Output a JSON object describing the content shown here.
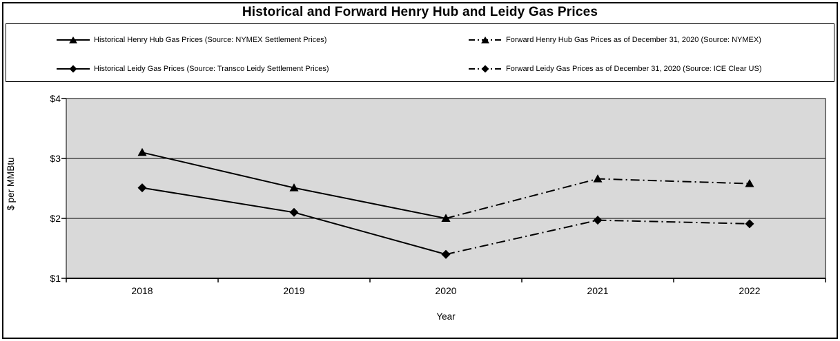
{
  "title": "Historical and Forward Henry Hub and Leidy Gas Prices",
  "axis": {
    "y_label": "$ per MMBtu",
    "x_label": "Year"
  },
  "legend": {
    "items": [
      {
        "label": "Historical Henry Hub Gas Prices (Source: NYMEX Settlement Prices)",
        "marker": "triangle",
        "line": "solid"
      },
      {
        "label": "Forward Henry Hub Gas Prices as of December 31, 2020 (Source: NYMEX)",
        "marker": "triangle",
        "line": "dash-dot"
      },
      {
        "label": "Historical Leidy Gas Prices (Source: Transco Leidy Settlement Prices)",
        "marker": "diamond",
        "line": "solid"
      },
      {
        "label": "Forward Leidy Gas Prices as of December 31, 2020 (Source: ICE Clear US)",
        "marker": "diamond",
        "line": "dash-dot"
      }
    ]
  },
  "chart_data": {
    "type": "line",
    "title": "Historical and Forward Henry Hub and Leidy Gas Prices",
    "xlabel": "Year",
    "ylabel": "$ per MMBtu",
    "categories": [
      "2018",
      "2019",
      "2020",
      "2021",
      "2022"
    ],
    "ylim": [
      1,
      4
    ],
    "y_ticks": [
      1,
      2,
      3,
      4
    ],
    "y_tick_labels": [
      "$1",
      "$2",
      "$3",
      "$4"
    ],
    "gridlines": [
      2,
      3
    ],
    "plot_bg": "#d9d9d9",
    "line_color": "#000000",
    "legend_position": "top",
    "series": [
      {
        "name": "Historical Henry Hub Gas Prices (Source: NYMEX Settlement Prices)",
        "marker": "triangle",
        "line": "solid",
        "x": [
          "2018",
          "2019",
          "2020"
        ],
        "values": [
          3.1,
          2.51,
          2.0
        ]
      },
      {
        "name": "Forward Henry Hub Gas Prices as of December 31, 2020 (Source: NYMEX)",
        "marker": "triangle",
        "line": "dash-dot",
        "x": [
          "2020",
          "2021",
          "2022"
        ],
        "values": [
          2.0,
          2.66,
          2.58
        ]
      },
      {
        "name": "Historical Leidy Gas Prices (Source: Transco Leidy Settlement Prices)",
        "marker": "diamond",
        "line": "solid",
        "x": [
          "2018",
          "2019",
          "2020"
        ],
        "values": [
          2.51,
          2.1,
          1.4
        ]
      },
      {
        "name": "Forward Leidy Gas Prices as of December 31, 2020 (Source: ICE Clear US)",
        "marker": "diamond",
        "line": "dash-dot",
        "x": [
          "2020",
          "2021",
          "2022"
        ],
        "values": [
          1.4,
          1.97,
          1.91
        ]
      }
    ]
  }
}
